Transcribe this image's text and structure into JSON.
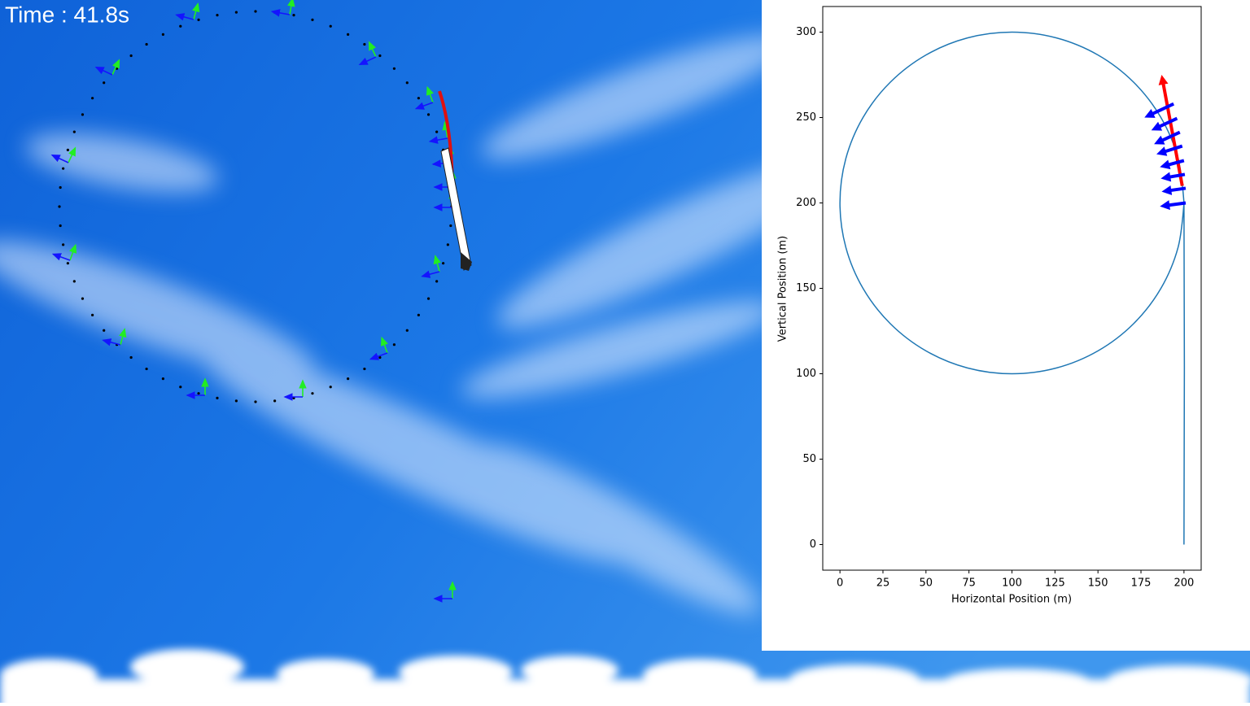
{
  "hud": {
    "time_label": "Time : 41.8s"
  },
  "chart_data": {
    "type": "line",
    "xlabel": "Horizontal Position (m)",
    "ylabel": "Vertical Position (m)",
    "xlim": [
      -10,
      210
    ],
    "ylim": [
      -15,
      315
    ],
    "xticks": [
      0,
      25,
      50,
      75,
      100,
      125,
      150,
      175,
      200
    ],
    "yticks": [
      0,
      50,
      100,
      150,
      200,
      250,
      300
    ],
    "series": [
      {
        "color": "#1f77b4",
        "x": [
          200,
          200,
          196.6,
          186.6,
          170.7,
          150,
          125.9,
          100,
          74.1,
          50,
          29.3,
          13.4,
          3.4,
          0,
          3.4,
          13.4,
          29.3,
          50,
          74.1,
          100,
          125.9,
          150,
          170.7,
          186.6,
          196.6,
          200
        ],
        "y": [
          0,
          200,
          225.9,
          250,
          270.7,
          286.6,
          296.6,
          300,
          296.6,
          286.6,
          270.7,
          250,
          225.9,
          200,
          174.1,
          150,
          129.3,
          113.4,
          103.4,
          100,
          103.4,
          113.4,
          129.3,
          150,
          174.1,
          200
        ]
      }
    ],
    "quiver": [
      {
        "color": "#ff0000",
        "x": [
          199
        ],
        "y": [
          210
        ],
        "u": [
          -12
        ],
        "v": [
          65
        ]
      },
      {
        "color": "#0000ff",
        "x": [
          201,
          201,
          200.5,
          200,
          199,
          197.6,
          196,
          194
        ],
        "y": [
          200,
          208.6,
          216.7,
          224.8,
          233.3,
          241.4,
          249.5,
          258
        ],
        "u": [
          -15,
          -14,
          -14,
          -14,
          -15,
          -15,
          -15,
          -17
        ],
        "v": [
          -2,
          -2,
          -2.4,
          -3.8,
          -4.8,
          -7,
          -7,
          -8
        ]
      }
    ]
  }
}
